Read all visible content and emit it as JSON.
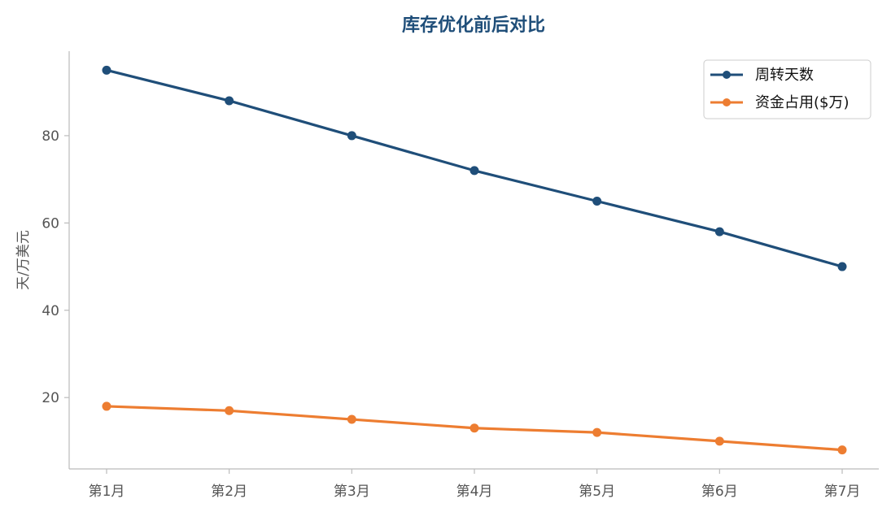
{
  "chart_data": {
    "type": "line",
    "title": "库存优化前后对比",
    "xlabel": "",
    "ylabel": "天/万美元",
    "categories": [
      "第1月",
      "第2月",
      "第3月",
      "第4月",
      "第5月",
      "第6月",
      "第7月"
    ],
    "series": [
      {
        "name": "周转天数",
        "values": [
          95,
          88,
          80,
          72,
          65,
          58,
          50
        ],
        "color": "#1f4e79"
      },
      {
        "name": "资金占用($万)",
        "values": [
          18,
          17,
          15,
          13,
          12,
          10,
          8
        ],
        "color": "#ed7d31"
      }
    ],
    "ylim": [
      3.65,
      99.35
    ],
    "yticks": [
      20,
      40,
      60,
      80
    ],
    "grid": false,
    "legend_position": "top-right",
    "title_color": "#1f4e79",
    "axis_color": "#bbbbbb",
    "text_color": "#555555"
  }
}
